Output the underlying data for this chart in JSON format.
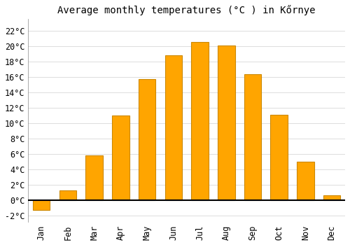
{
  "title": "Average monthly temperatures (°C ) in Kőrnye",
  "months": [
    "Jan",
    "Feb",
    "Mar",
    "Apr",
    "May",
    "Jun",
    "Jul",
    "Aug",
    "Sep",
    "Oct",
    "Nov",
    "Dec"
  ],
  "values": [
    -1.3,
    1.3,
    5.8,
    11.0,
    15.7,
    18.8,
    20.5,
    20.1,
    16.3,
    11.1,
    5.0,
    0.6
  ],
  "bar_color": "#FFA500",
  "bar_edge_color": "#CC8800",
  "background_color": "#ffffff",
  "grid_color": "#dddddd",
  "ylim": [
    -2.8,
    23.5
  ],
  "yticks": [
    -2,
    0,
    2,
    4,
    6,
    8,
    10,
    12,
    14,
    16,
    18,
    20,
    22
  ],
  "title_fontsize": 10,
  "tick_fontsize": 8.5,
  "bar_width": 0.65
}
